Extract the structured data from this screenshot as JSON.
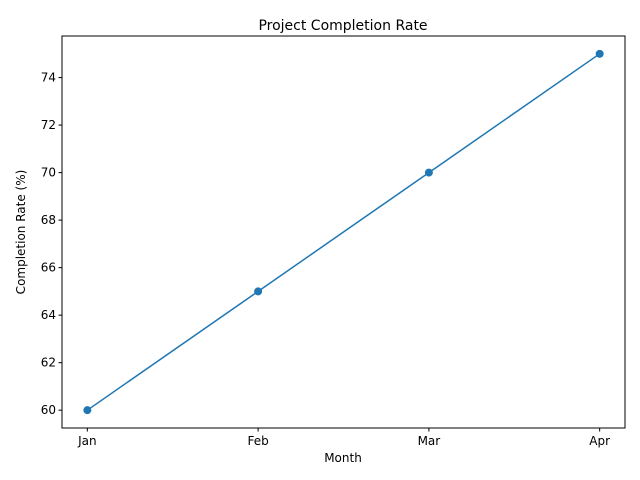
{
  "chart_data": {
    "type": "line",
    "title": "Project Completion Rate",
    "xlabel": "Month",
    "ylabel": "Completion Rate (%)",
    "categories": [
      "Jan",
      "Feb",
      "Mar",
      "Apr"
    ],
    "series": [
      {
        "values": [
          60,
          65,
          70,
          75
        ],
        "color": "#1f77b4",
        "marker": "circle"
      }
    ],
    "ylim": [
      59.25,
      75.75
    ],
    "yticks": [
      60,
      62,
      64,
      66,
      68,
      70,
      72,
      74
    ],
    "grid": false,
    "legend": "none"
  }
}
